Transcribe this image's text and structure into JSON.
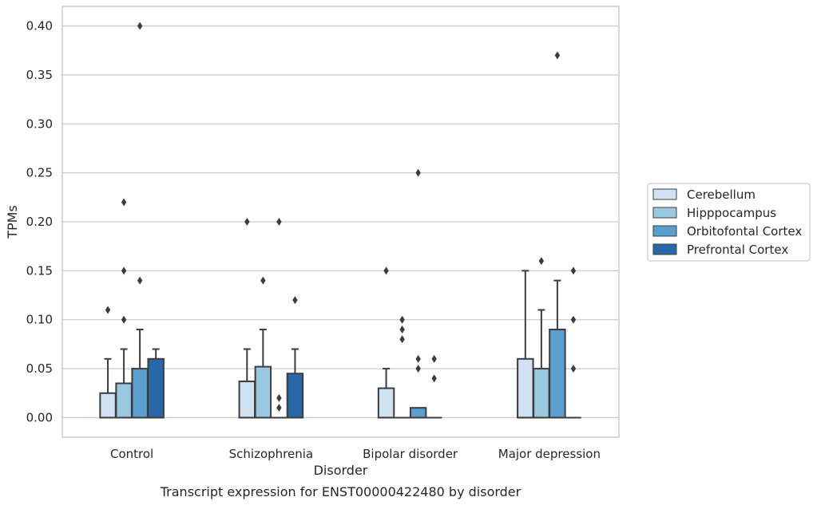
{
  "chart_data": {
    "type": "box",
    "title": "",
    "caption": "Transcript expression for ENST00000422480 by disorder",
    "xlabel": "Disorder",
    "ylabel": "TPMs",
    "ylim": [
      -0.02,
      0.42
    ],
    "yticks": [
      0.0,
      0.05,
      0.1,
      0.15,
      0.2,
      0.25,
      0.3,
      0.35,
      0.4
    ],
    "ytick_labels": [
      "0.00",
      "0.05",
      "0.10",
      "0.15",
      "0.20",
      "0.25",
      "0.30",
      "0.35",
      "0.40"
    ],
    "grid": "horizontal",
    "legend_position": "right",
    "categories": [
      "Control",
      "Schizophrenia",
      "Bipolar disorder",
      "Major depression"
    ],
    "series": [
      {
        "name": "Cerebellum",
        "color": "#d0e1f2",
        "boxes": [
          {
            "q1": 0,
            "median": 0,
            "q3": 0.025,
            "whisker_low": 0,
            "whisker_high": 0.06,
            "outliers": [
              0.11
            ]
          },
          {
            "q1": 0,
            "median": 0,
            "q3": 0.037,
            "whisker_low": 0,
            "whisker_high": 0.07,
            "outliers": [
              0.2
            ]
          },
          {
            "q1": 0,
            "median": 0,
            "q3": 0.03,
            "whisker_low": 0,
            "whisker_high": 0.05,
            "outliers": [
              0.15
            ]
          },
          {
            "q1": 0,
            "median": 0,
            "q3": 0.06,
            "whisker_low": 0,
            "whisker_high": 0.15,
            "outliers": []
          }
        ]
      },
      {
        "name": "Hipppocampus",
        "color": "#9ac8e0",
        "boxes": [
          {
            "q1": 0,
            "median": 0,
            "q3": 0.035,
            "whisker_low": 0,
            "whisker_high": 0.07,
            "outliers": [
              0.1,
              0.15,
              0.22
            ]
          },
          {
            "q1": 0,
            "median": 0,
            "q3": 0.052,
            "whisker_low": 0,
            "whisker_high": 0.09,
            "outliers": [
              0.14
            ]
          },
          {
            "q1": 0,
            "median": 0,
            "q3": 0,
            "whisker_low": 0,
            "whisker_high": 0,
            "outliers": [
              0.08,
              0.09,
              0.1
            ]
          },
          {
            "q1": 0,
            "median": 0,
            "q3": 0.05,
            "whisker_low": 0,
            "whisker_high": 0.11,
            "outliers": [
              0.16
            ]
          }
        ]
      },
      {
        "name": "Orbitofontal Cortex",
        "color": "#5a9fcd",
        "boxes": [
          {
            "q1": 0,
            "median": 0,
            "q3": 0.05,
            "whisker_low": 0,
            "whisker_high": 0.09,
            "outliers": [
              0.14,
              0.4
            ]
          },
          {
            "q1": 0,
            "median": 0,
            "q3": 0,
            "whisker_low": 0,
            "whisker_high": 0,
            "outliers": [
              0.01,
              0.02,
              0.2
            ]
          },
          {
            "q1": 0,
            "median": 0,
            "q3": 0.01,
            "whisker_low": 0,
            "whisker_high": 0.01,
            "outliers": [
              0.05,
              0.06,
              0.25
            ]
          },
          {
            "q1": 0,
            "median": 0,
            "q3": 0.09,
            "whisker_low": 0,
            "whisker_high": 0.14,
            "outliers": [
              0.37
            ]
          }
        ]
      },
      {
        "name": "Prefrontal Cortex",
        "color": "#2868a8",
        "boxes": [
          {
            "q1": 0,
            "median": 0,
            "q3": 0.06,
            "whisker_low": 0,
            "whisker_high": 0.07,
            "outliers": []
          },
          {
            "q1": 0,
            "median": 0,
            "q3": 0.045,
            "whisker_low": 0,
            "whisker_high": 0.07,
            "outliers": [
              0.12
            ]
          },
          {
            "q1": 0,
            "median": 0,
            "q3": 0,
            "whisker_low": 0,
            "whisker_high": 0,
            "outliers": [
              0.04,
              0.06
            ]
          },
          {
            "q1": 0,
            "median": 0,
            "q3": 0,
            "whisker_low": 0,
            "whisker_high": 0,
            "outliers": [
              0.05,
              0.1,
              0.15
            ]
          }
        ]
      }
    ]
  }
}
